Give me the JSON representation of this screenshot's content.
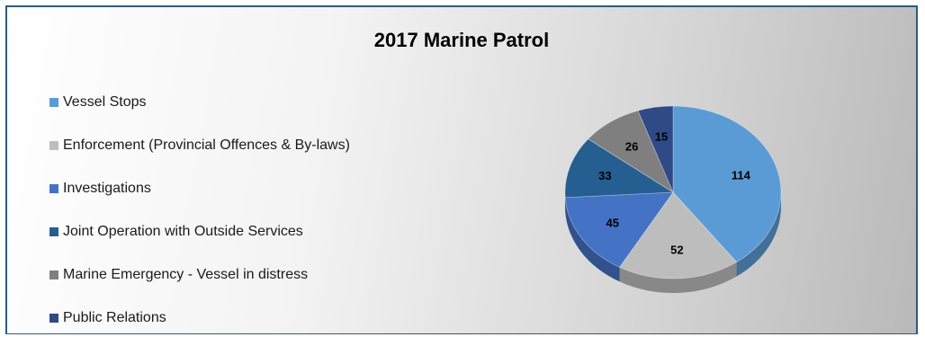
{
  "chart_data": {
    "type": "pie",
    "title": "2017 Marine Patrol",
    "legend_position": "left",
    "categories": [
      "Vessel Stops",
      "Enforcement (Provincial Offences & By-laws)",
      "Investigations",
      "Joint Operation with Outside Services",
      "Marine Emergency - Vessel in distress",
      "Public Relations"
    ],
    "values": [
      114,
      52,
      45,
      33,
      26,
      15
    ],
    "colors": [
      "#5b9bd5",
      "#bdbdbd",
      "#4472c4",
      "#255e91",
      "#7f7f7f",
      "#2f4a86"
    ],
    "data_labels": [
      "114",
      "52",
      "45",
      "33",
      "26",
      "15"
    ]
  }
}
